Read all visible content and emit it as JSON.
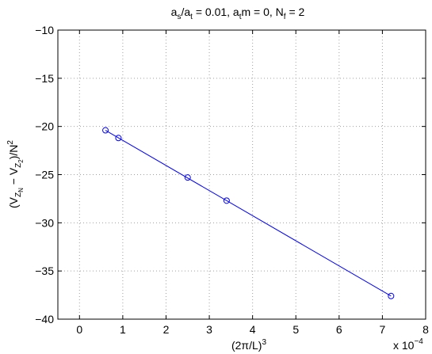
{
  "chart_data": {
    "type": "line",
    "title_parts": {
      "a1": "a",
      "s": "s",
      "slash": "/",
      "a2": "a",
      "t1": "t",
      "eq1": " = 0.01, ",
      "a3": "a",
      "t2": "t",
      "m": "m = 0, N",
      "f": "f",
      "eq2": " = 2"
    },
    "xlabel_parts": {
      "base": "(2π/L)",
      "exp": "3"
    },
    "ylabel_parts": {
      "open": "(V",
      "z1": "Z",
      "n": "N",
      "minus": " − V",
      "z2": "Z",
      "two": "2",
      "close": ")/N",
      "sq": "2"
    },
    "x_multiplier": {
      "prefix": "x 10",
      "exp": "−4"
    },
    "xlim": [
      -0.5,
      8
    ],
    "ylim": [
      -40,
      -10
    ],
    "xticks": [
      0,
      1,
      2,
      3,
      4,
      5,
      6,
      7,
      8
    ],
    "yticks": [
      -10,
      -15,
      -20,
      -25,
      -30,
      -35,
      -40
    ],
    "grid": true,
    "series": [
      {
        "color": "#0000ff",
        "points": [
          {
            "x": 0.6,
            "y": -20.4
          },
          {
            "x": 0.9,
            "y": -21.2
          },
          {
            "x": 2.5,
            "y": -25.3
          },
          {
            "x": 3.4,
            "y": -27.7
          },
          {
            "x": 7.2,
            "y": -37.6
          }
        ],
        "fit_line": {
          "x": [
            0.6,
            7.2
          ],
          "y": [
            -20.4,
            -37.6
          ]
        }
      }
    ]
  }
}
